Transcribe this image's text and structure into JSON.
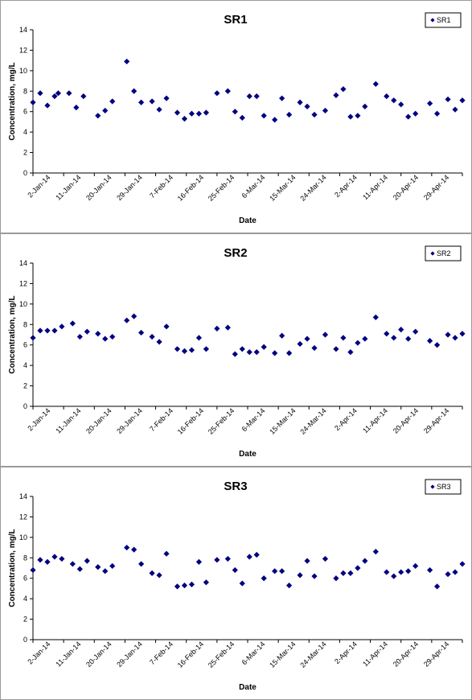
{
  "chart_data": [
    {
      "type": "scatter",
      "title": "SR1",
      "xlabel": "Date",
      "ylabel": "Concentration, mg/L",
      "ylim": [
        0,
        14
      ],
      "yticks": [
        0,
        2,
        4,
        6,
        8,
        10,
        12,
        14
      ],
      "xlim": [
        "2014-01-02",
        "2014-05-01"
      ],
      "xticks": [
        "2-Jan-14",
        "11-Jan-14",
        "20-Jan-14",
        "29-Jan-14",
        "7-Feb-14",
        "16-Feb-14",
        "25-Feb-14",
        "6-Mar-14",
        "15-Mar-14",
        "24-Mar-14",
        "2-Apr-14",
        "11-Apr-14",
        "20-Apr-14",
        "29-Apr-14"
      ],
      "grid": false,
      "legend": "top-right",
      "marker": "diamond",
      "color": "#000080",
      "series": [
        {
          "name": "SR1",
          "x": [
            "2014-01-02",
            "2014-01-04",
            "2014-01-06",
            "2014-01-08",
            "2014-01-09",
            "2014-01-12",
            "2014-01-14",
            "2014-01-16",
            "2014-01-20",
            "2014-01-22",
            "2014-01-24",
            "2014-01-28",
            "2014-01-30",
            "2014-02-01",
            "2014-02-04",
            "2014-02-06",
            "2014-02-08",
            "2014-02-11",
            "2014-02-13",
            "2014-02-15",
            "2014-02-17",
            "2014-02-19",
            "2014-02-22",
            "2014-02-25",
            "2014-02-27",
            "2014-03-01",
            "2014-03-03",
            "2014-03-05",
            "2014-03-07",
            "2014-03-10",
            "2014-03-12",
            "2014-03-14",
            "2014-03-17",
            "2014-03-19",
            "2014-03-21",
            "2014-03-24",
            "2014-03-27",
            "2014-03-29",
            "2014-03-31",
            "2014-04-02",
            "2014-04-04",
            "2014-04-07",
            "2014-04-10",
            "2014-04-12",
            "2014-04-14",
            "2014-04-16",
            "2014-04-18",
            "2014-04-22",
            "2014-04-24",
            "2014-04-27",
            "2014-04-29",
            "2014-05-01"
          ],
          "y": [
            6.9,
            7.8,
            6.6,
            7.5,
            7.8,
            7.8,
            6.4,
            7.5,
            5.6,
            6.1,
            7.0,
            10.9,
            8.0,
            6.9,
            7.0,
            6.2,
            7.3,
            5.9,
            5.3,
            5.8,
            5.8,
            5.9,
            7.8,
            8.0,
            6.0,
            5.4,
            7.5,
            7.5,
            5.6,
            5.2,
            7.3,
            5.7,
            6.9,
            6.5,
            5.7,
            6.1,
            7.6,
            8.2,
            5.5,
            5.6,
            6.5,
            8.7,
            7.5,
            7.1,
            6.7,
            5.5,
            5.8,
            6.8,
            5.8,
            7.2,
            6.2,
            7.1
          ]
        }
      ]
    },
    {
      "type": "scatter",
      "title": "SR2",
      "xlabel": "Date",
      "ylabel": "Concentration, mg/L",
      "ylim": [
        0,
        14
      ],
      "yticks": [
        0,
        2,
        4,
        6,
        8,
        10,
        12,
        14
      ],
      "xlim": [
        "2014-01-02",
        "2014-05-01"
      ],
      "xticks": [
        "2-Jan-14",
        "11-Jan-14",
        "20-Jan-14",
        "29-Jan-14",
        "7-Feb-14",
        "16-Feb-14",
        "25-Feb-14",
        "6-Mar-14",
        "15-Mar-14",
        "24-Mar-14",
        "2-Apr-14",
        "11-Apr-14",
        "20-Apr-14",
        "29-Apr-14"
      ],
      "grid": false,
      "legend": "top-right",
      "marker": "diamond",
      "color": "#000080",
      "series": [
        {
          "name": "SR2",
          "x": [
            "2014-01-02",
            "2014-01-04",
            "2014-01-06",
            "2014-01-08",
            "2014-01-10",
            "2014-01-13",
            "2014-01-15",
            "2014-01-17",
            "2014-01-20",
            "2014-01-22",
            "2014-01-24",
            "2014-01-28",
            "2014-01-30",
            "2014-02-01",
            "2014-02-04",
            "2014-02-06",
            "2014-02-08",
            "2014-02-11",
            "2014-02-13",
            "2014-02-15",
            "2014-02-17",
            "2014-02-19",
            "2014-02-22",
            "2014-02-25",
            "2014-02-27",
            "2014-03-01",
            "2014-03-03",
            "2014-03-05",
            "2014-03-07",
            "2014-03-10",
            "2014-03-12",
            "2014-03-14",
            "2014-03-17",
            "2014-03-19",
            "2014-03-21",
            "2014-03-24",
            "2014-03-27",
            "2014-03-29",
            "2014-03-31",
            "2014-04-02",
            "2014-04-04",
            "2014-04-07",
            "2014-04-10",
            "2014-04-12",
            "2014-04-14",
            "2014-04-16",
            "2014-04-18",
            "2014-04-22",
            "2014-04-24",
            "2014-04-27",
            "2014-04-29",
            "2014-05-01"
          ],
          "y": [
            6.7,
            7.4,
            7.4,
            7.4,
            7.8,
            8.1,
            6.8,
            7.3,
            7.1,
            6.6,
            6.8,
            8.4,
            8.8,
            7.2,
            6.8,
            6.3,
            7.8,
            5.6,
            5.4,
            5.5,
            6.7,
            5.6,
            7.6,
            7.7,
            5.1,
            5.6,
            5.3,
            5.3,
            5.8,
            5.2,
            6.9,
            5.2,
            6.1,
            6.6,
            5.7,
            7.0,
            5.6,
            6.7,
            5.3,
            6.2,
            6.6,
            8.7,
            7.1,
            6.7,
            7.5,
            6.6,
            7.3,
            6.4,
            6.0,
            7.0,
            6.7,
            7.1
          ]
        }
      ]
    },
    {
      "type": "scatter",
      "title": "SR3",
      "xlabel": "Date",
      "ylabel": "Concentration, mg/L",
      "ylim": [
        0,
        14
      ],
      "yticks": [
        0,
        2,
        4,
        6,
        8,
        10,
        12,
        14
      ],
      "xlim": [
        "2014-01-02",
        "2014-05-01"
      ],
      "xticks": [
        "2-Jan-14",
        "11-Jan-14",
        "20-Jan-14",
        "29-Jan-14",
        "7-Feb-14",
        "16-Feb-14",
        "25-Feb-14",
        "6-Mar-14",
        "15-Mar-14",
        "24-Mar-14",
        "2-Apr-14",
        "11-Apr-14",
        "20-Apr-14",
        "29-Apr-14"
      ],
      "grid": false,
      "legend": "top-right",
      "marker": "diamond",
      "color": "#000080",
      "series": [
        {
          "name": "SR3",
          "x": [
            "2014-01-02",
            "2014-01-04",
            "2014-01-06",
            "2014-01-08",
            "2014-01-10",
            "2014-01-13",
            "2014-01-15",
            "2014-01-17",
            "2014-01-20",
            "2014-01-22",
            "2014-01-24",
            "2014-01-28",
            "2014-01-30",
            "2014-02-01",
            "2014-02-04",
            "2014-02-06",
            "2014-02-08",
            "2014-02-11",
            "2014-02-13",
            "2014-02-15",
            "2014-02-17",
            "2014-02-19",
            "2014-02-22",
            "2014-02-25",
            "2014-02-27",
            "2014-03-01",
            "2014-03-03",
            "2014-03-05",
            "2014-03-07",
            "2014-03-10",
            "2014-03-12",
            "2014-03-14",
            "2014-03-17",
            "2014-03-19",
            "2014-03-21",
            "2014-03-24",
            "2014-03-27",
            "2014-03-29",
            "2014-03-31",
            "2014-04-02",
            "2014-04-04",
            "2014-04-07",
            "2014-04-10",
            "2014-04-12",
            "2014-04-14",
            "2014-04-16",
            "2014-04-18",
            "2014-04-22",
            "2014-04-24",
            "2014-04-27",
            "2014-04-29",
            "2014-05-01"
          ],
          "y": [
            6.8,
            7.8,
            7.6,
            8.1,
            7.9,
            7.4,
            6.9,
            7.7,
            7.1,
            6.7,
            7.2,
            9.0,
            8.8,
            7.4,
            6.5,
            6.3,
            8.4,
            5.2,
            5.3,
            5.4,
            7.6,
            5.6,
            7.8,
            7.9,
            6.8,
            5.5,
            8.1,
            8.3,
            6.0,
            6.7,
            6.7,
            5.3,
            6.3,
            7.7,
            6.2,
            7.9,
            6.0,
            6.5,
            6.5,
            7.0,
            7.7,
            8.6,
            6.6,
            6.2,
            6.6,
            6.7,
            7.2,
            6.8,
            5.2,
            6.4,
            6.6,
            7.4
          ]
        }
      ]
    }
  ]
}
